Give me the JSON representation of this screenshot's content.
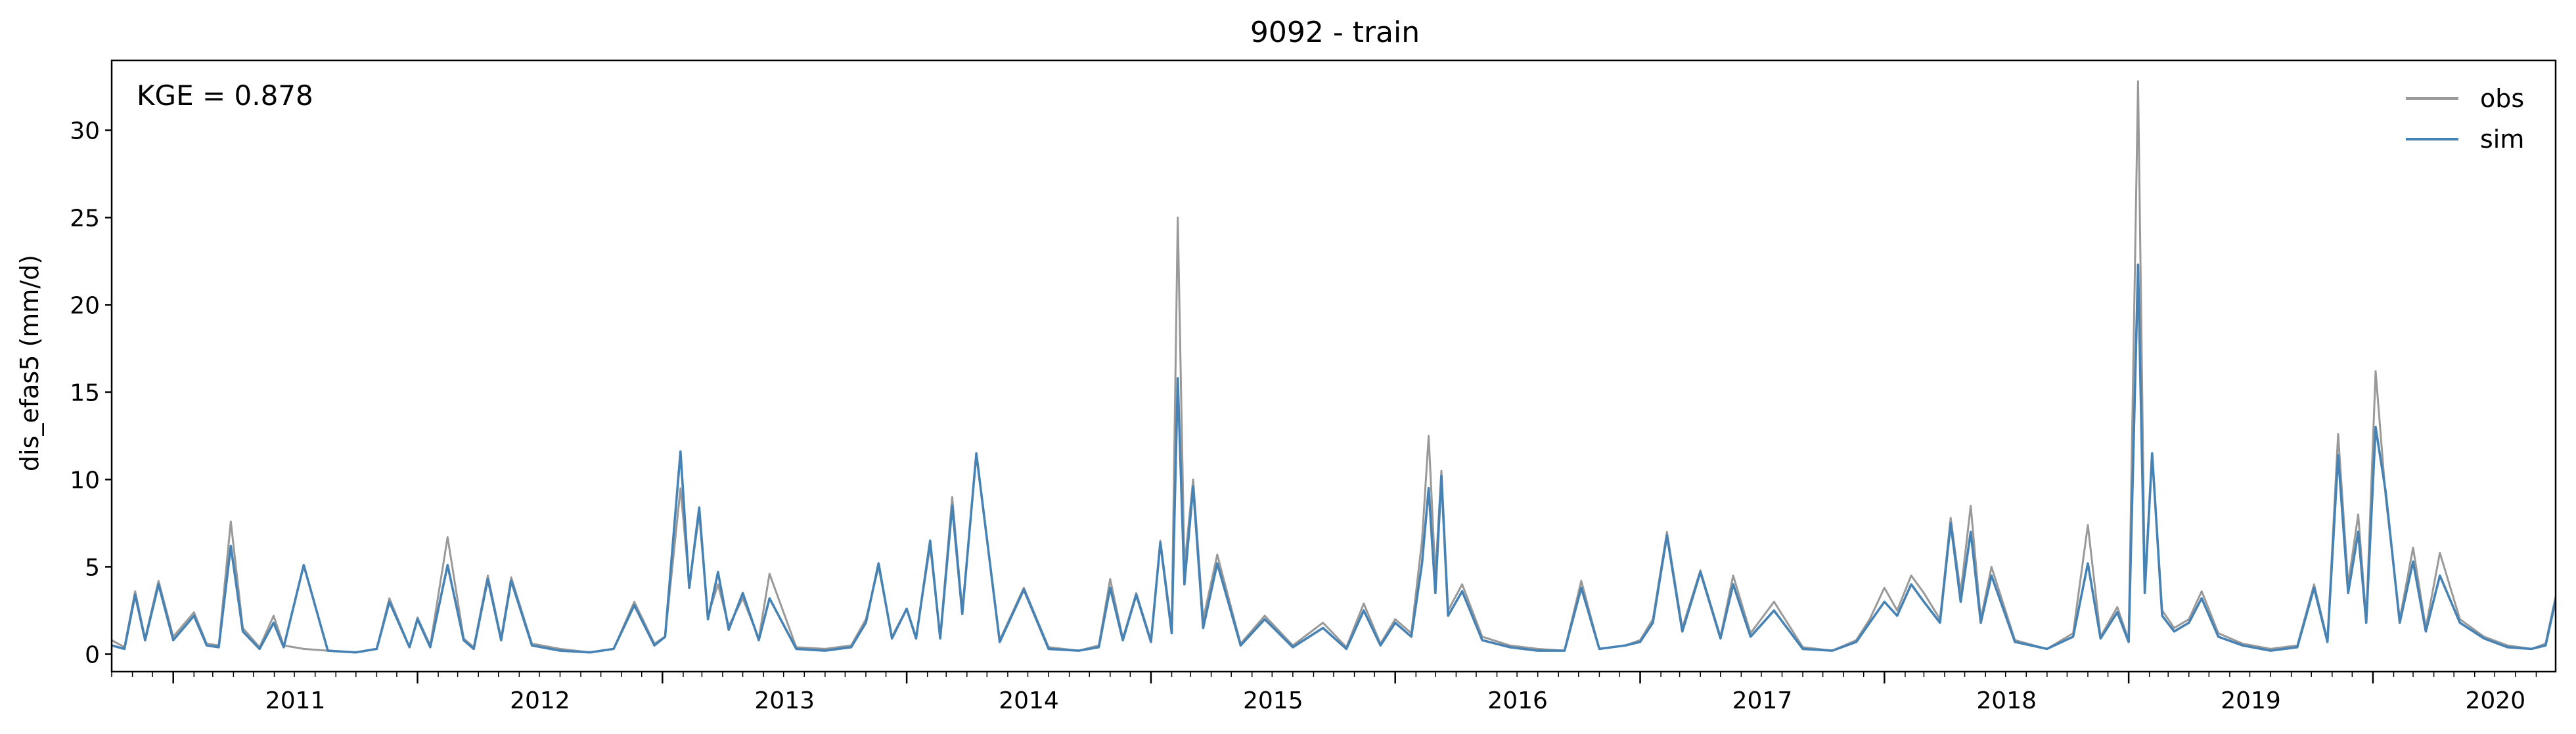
{
  "chart_data": {
    "type": "line",
    "title": "9092 - train",
    "xlabel": "",
    "ylabel": "dis_efas5 (mm/d)",
    "annotation": "KGE = 0.878",
    "legend_position": "top-right",
    "grid": false,
    "xlim": [
      "2010-10-01",
      "2020-09-30"
    ],
    "ylim": [
      -1.0,
      34.0
    ],
    "x_ticks": [
      "2011",
      "2012",
      "2013",
      "2014",
      "2015",
      "2016",
      "2017",
      "2018",
      "2019",
      "2020"
    ],
    "y_ticks": [
      "0",
      "5",
      "10",
      "15",
      "20",
      "25",
      "30"
    ],
    "x": [
      "2010-10-01",
      "2010-10-20",
      "2010-11-05",
      "2010-11-20",
      "2010-12-10",
      "2011-01-01",
      "2011-02-01",
      "2011-02-20",
      "2011-03-10",
      "2011-03-28",
      "2011-04-15",
      "2011-05-10",
      "2011-05-31",
      "2011-06-15",
      "2011-07-15",
      "2011-08-20",
      "2011-10-01",
      "2011-11-01",
      "2011-11-20",
      "2011-12-20",
      "2012-01-01",
      "2012-01-20",
      "2012-02-15",
      "2012-03-10",
      "2012-03-25",
      "2012-04-15",
      "2012-05-05",
      "2012-05-20",
      "2012-06-20",
      "2012-08-01",
      "2012-09-15",
      "2012-10-20",
      "2012-11-20",
      "2012-12-20",
      "2013-01-05",
      "2013-01-28",
      "2013-02-10",
      "2013-02-25",
      "2013-03-10",
      "2013-03-25",
      "2013-04-10",
      "2013-05-01",
      "2013-05-25",
      "2013-06-10",
      "2013-07-20",
      "2013-09-01",
      "2013-10-10",
      "2013-11-01",
      "2013-11-20",
      "2013-12-10",
      "2014-01-01",
      "2014-01-15",
      "2014-02-05",
      "2014-02-20",
      "2014-03-10",
      "2014-03-25",
      "2014-04-15",
      "2014-05-20",
      "2014-06-25",
      "2014-08-01",
      "2014-09-15",
      "2014-10-15",
      "2014-11-01",
      "2014-11-20",
      "2014-12-10",
      "2015-01-01",
      "2015-01-15",
      "2015-02-01",
      "2015-02-10",
      "2015-02-20",
      "2015-03-05",
      "2015-03-20",
      "2015-04-10",
      "2015-05-15",
      "2015-06-20",
      "2015-08-01",
      "2015-09-15",
      "2015-10-20",
      "2015-11-15",
      "2015-12-10",
      "2016-01-01",
      "2016-01-25",
      "2016-02-10",
      "2016-02-20",
      "2016-03-01",
      "2016-03-10",
      "2016-03-20",
      "2016-04-10",
      "2016-05-10",
      "2016-06-20",
      "2016-08-01",
      "2016-09-10",
      "2016-10-05",
      "2016-11-01",
      "2016-12-10",
      "2017-01-01",
      "2017-01-20",
      "2017-02-10",
      "2017-03-05",
      "2017-04-01",
      "2017-05-01",
      "2017-05-20",
      "2017-06-15",
      "2017-07-20",
      "2017-09-01",
      "2017-10-15",
      "2017-11-20",
      "2017-12-10",
      "2018-01-01",
      "2018-01-20",
      "2018-02-10",
      "2018-03-01",
      "2018-03-25",
      "2018-04-10",
      "2018-04-25",
      "2018-05-10",
      "2018-05-25",
      "2018-06-10",
      "2018-07-15",
      "2018-09-01",
      "2018-10-10",
      "2018-11-01",
      "2018-11-20",
      "2018-12-15",
      "2019-01-01",
      "2019-01-15",
      "2019-01-25",
      "2019-02-05",
      "2019-02-20",
      "2019-03-10",
      "2019-04-01",
      "2019-04-20",
      "2019-05-15",
      "2019-06-20",
      "2019-08-01",
      "2019-09-10",
      "2019-10-05",
      "2019-10-25",
      "2019-11-10",
      "2019-11-25",
      "2019-12-10",
      "2019-12-22",
      "2020-01-05",
      "2020-01-20",
      "2020-02-10",
      "2020-03-01",
      "2020-03-20",
      "2020-04-10",
      "2020-05-10",
      "2020-06-15",
      "2020-07-20",
      "2020-08-25",
      "2020-09-15",
      "2020-09-30"
    ],
    "series": [
      {
        "name": "obs",
        "color": "#999999",
        "values": [
          0.8,
          0.4,
          3.6,
          0.9,
          4.2,
          1.0,
          2.4,
          0.6,
          0.5,
          7.6,
          1.5,
          0.4,
          2.2,
          0.5,
          0.3,
          0.2,
          0.1,
          0.3,
          3.2,
          0.4,
          2.1,
          0.5,
          6.7,
          0.9,
          0.4,
          4.5,
          0.9,
          4.4,
          0.6,
          0.3,
          0.1,
          0.3,
          3.0,
          0.6,
          1.0,
          9.5,
          4.0,
          8.0,
          2.2,
          4.0,
          1.6,
          3.2,
          0.9,
          4.6,
          0.4,
          0.3,
          0.5,
          2.0,
          5.0,
          1.0,
          2.6,
          1.0,
          6.2,
          1.0,
          9.0,
          2.5,
          11.4,
          0.8,
          3.8,
          0.4,
          0.2,
          0.5,
          4.3,
          0.9,
          3.5,
          0.8,
          6.5,
          1.5,
          25.0,
          5.0,
          10.0,
          2.0,
          5.7,
          0.6,
          2.2,
          0.5,
          1.8,
          0.4,
          2.9,
          0.6,
          2.0,
          1.2,
          6.5,
          12.5,
          4.5,
          10.5,
          2.5,
          4.0,
          1.0,
          0.5,
          0.3,
          0.2,
          4.2,
          0.3,
          0.5,
          0.8,
          2.0,
          7.0,
          1.5,
          4.8,
          1.0,
          4.5,
          1.2,
          3.0,
          0.4,
          0.2,
          0.8,
          2.0,
          3.8,
          2.5,
          4.5,
          3.5,
          2.0,
          7.8,
          3.5,
          8.5,
          2.0,
          5.0,
          0.8,
          0.3,
          1.2,
          7.4,
          1.0,
          2.7,
          0.8,
          32.8,
          4.0,
          11.5,
          2.5,
          1.5,
          2.0,
          3.6,
          1.2,
          0.6,
          0.3,
          0.5,
          4.0,
          0.8,
          12.6,
          4.0,
          8.0,
          2.0,
          16.2,
          9.0,
          2.0,
          6.1,
          1.5,
          5.8,
          2.0,
          1.0,
          0.5,
          0.3,
          0.6,
          3.3
        ]
      },
      {
        "name": "sim",
        "color": "#4682b4",
        "values": [
          0.5,
          0.3,
          3.4,
          0.8,
          4.0,
          0.8,
          2.2,
          0.5,
          0.4,
          6.2,
          1.3,
          0.3,
          1.8,
          0.4,
          5.1,
          0.2,
          0.1,
          0.3,
          3.0,
          0.4,
          2.0,
          0.4,
          5.1,
          0.8,
          0.3,
          4.3,
          0.8,
          4.2,
          0.5,
          0.2,
          0.1,
          0.3,
          2.8,
          0.5,
          1.0,
          11.6,
          3.8,
          8.4,
          2.0,
          4.7,
          1.4,
          3.5,
          0.8,
          3.2,
          0.3,
          0.2,
          0.4,
          1.8,
          5.2,
          0.9,
          2.6,
          0.9,
          6.5,
          0.9,
          8.5,
          2.3,
          11.5,
          0.7,
          3.7,
          0.3,
          0.2,
          0.4,
          3.8,
          0.8,
          3.4,
          0.7,
          6.4,
          1.2,
          15.8,
          4.0,
          9.6,
          1.5,
          5.2,
          0.5,
          2.0,
          0.4,
          1.5,
          0.3,
          2.5,
          0.5,
          1.8,
          1.0,
          5.2,
          9.5,
          3.5,
          10.2,
          2.2,
          3.6,
          0.8,
          0.4,
          0.2,
          0.2,
          3.8,
          0.3,
          0.5,
          0.7,
          1.8,
          6.8,
          1.3,
          4.7,
          0.9,
          4.0,
          1.0,
          2.5,
          0.3,
          0.2,
          0.7,
          1.8,
          3.0,
          2.2,
          4.0,
          3.0,
          1.8,
          7.5,
          3.0,
          7.0,
          1.8,
          4.5,
          0.7,
          0.3,
          1.0,
          5.2,
          0.9,
          2.4,
          0.7,
          22.3,
          3.5,
          11.5,
          2.2,
          1.3,
          1.8,
          3.2,
          1.0,
          0.5,
          0.2,
          0.4,
          3.8,
          0.7,
          11.4,
          3.5,
          7.0,
          1.8,
          13.0,
          9.3,
          1.8,
          5.3,
          1.3,
          4.5,
          1.8,
          0.9,
          0.4,
          0.3,
          0.5,
          3.1
        ]
      }
    ]
  }
}
